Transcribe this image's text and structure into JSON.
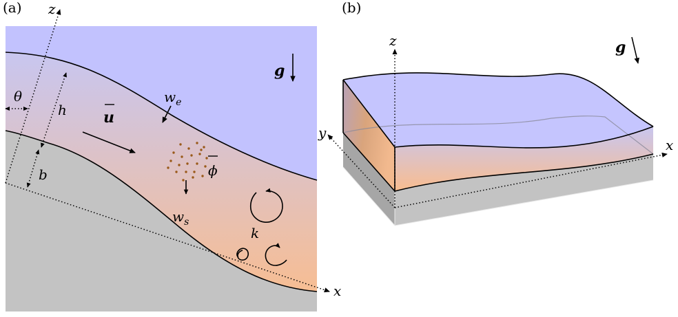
{
  "panels": {
    "a": {
      "label": "(a)",
      "symbols": {
        "z": "z",
        "x": "x",
        "theta": "θ",
        "h": "h",
        "b": "b",
        "u": "u",
        "g": "g",
        "we": "w",
        "we_sub": "e",
        "ws": "w",
        "ws_sub": "s",
        "phi": "ϕ",
        "k": "k"
      }
    },
    "b": {
      "label": "(b)",
      "symbols": {
        "z": "z",
        "x": "x",
        "y": "y",
        "g": "g"
      }
    }
  },
  "colors": {
    "ambient": "#c2c2fe",
    "current_top": "#c8c6f0",
    "current_bottom": "#f9bd8f",
    "bed": "#c3c3c3",
    "particles": "#9a5a1a"
  }
}
